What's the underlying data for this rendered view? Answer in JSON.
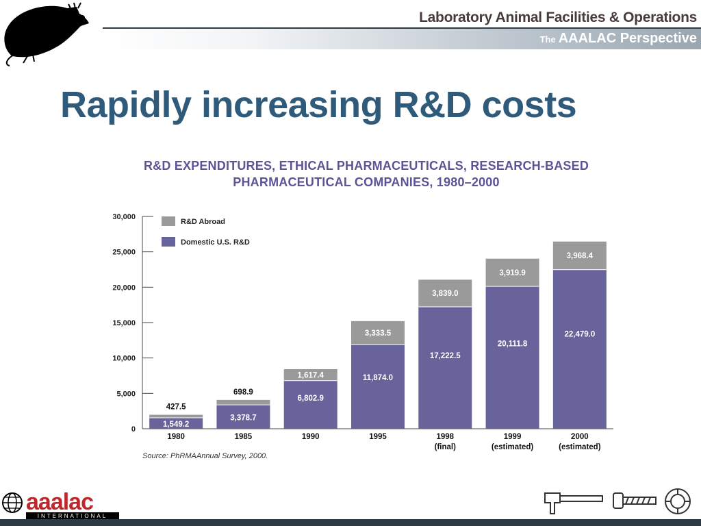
{
  "header": {
    "title": "Laboratory Animal Facilities & Operations",
    "subtitle_prefix": "The",
    "subtitle": "AAALAC Perspective"
  },
  "slide": {
    "title": "Rapidly increasing R&D costs",
    "source": "Source:  PhRMAAnnual  Survey, 2000."
  },
  "chart_data": {
    "type": "bar",
    "stacked": true,
    "title_line1": "R&D EXPENDITURES, ETHICAL PHARMACEUTICALS, RESEARCH-BASED",
    "title_line2": "PHARMACEUTICAL COMPANIES, 1980–2000",
    "categories": [
      [
        "1980"
      ],
      [
        "1985"
      ],
      [
        "1990"
      ],
      [
        "1995"
      ],
      [
        "1998",
        "(final)"
      ],
      [
        "1999",
        "(estimated)"
      ],
      [
        "2000",
        "(estimated)"
      ]
    ],
    "series": [
      {
        "name": "Domestic U.S. R&D",
        "color": "#68639a",
        "values": [
          1549.2,
          3378.7,
          6802.9,
          11874.0,
          17222.5,
          20111.8,
          22479.0
        ],
        "labels": [
          "1,549.2",
          "3,378.7",
          "6,802.9",
          "11,874.0",
          "17,222.5",
          "20,111.8",
          "22,479.0"
        ]
      },
      {
        "name": "R&D Abroad",
        "color": "#9a9a9a",
        "values": [
          427.5,
          698.9,
          1617.4,
          3333.5,
          3839.0,
          3919.9,
          3968.4
        ],
        "labels": [
          "427.5",
          "698.9",
          "1,617.4",
          "3,333.5",
          "3,839.0",
          "3,919.9",
          "3,968.4"
        ]
      }
    ],
    "ylim": [
      0,
      30000
    ],
    "yticks": [
      0,
      5000,
      10000,
      15000,
      20000,
      25000,
      30000
    ],
    "ytick_labels": [
      "0",
      "5,000",
      "10,000",
      "15,000",
      "20,000",
      "25,000",
      "30,000"
    ],
    "legend_position": "top-left"
  },
  "footer": {
    "logo_text": "aaalac",
    "logo_subtext": "INTERNATIONAL"
  },
  "colors": {
    "title": "#2f5a7a",
    "chart_title": "#5b5496",
    "domestic": "#68639a",
    "abroad": "#9a9a9a",
    "footer": "#2b3a45"
  }
}
